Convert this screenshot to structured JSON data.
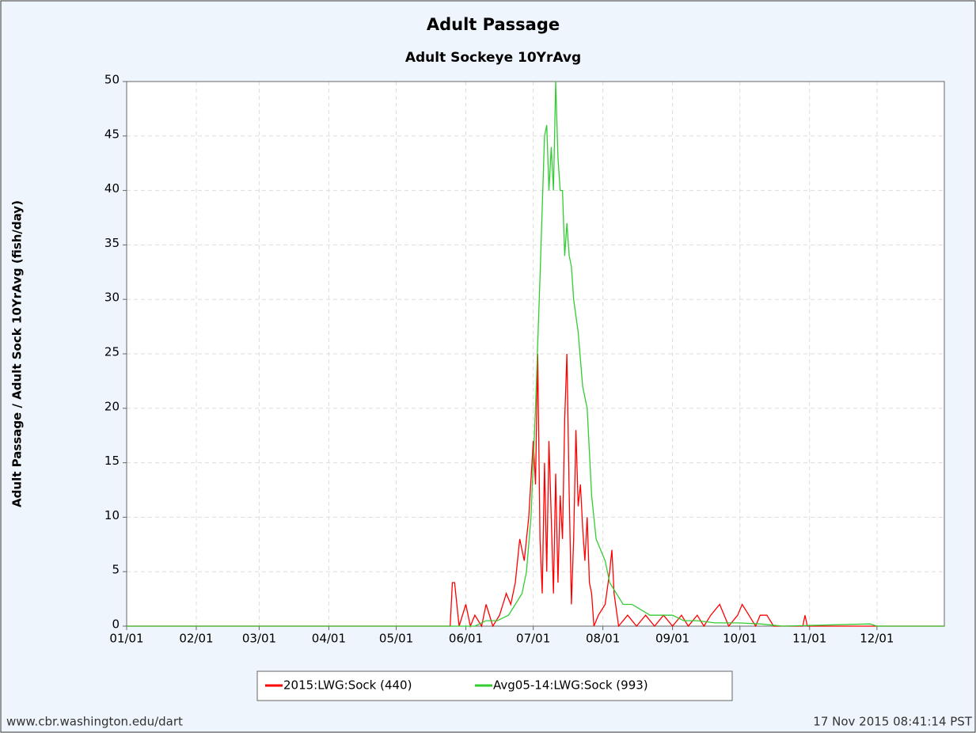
{
  "chart_data": {
    "type": "line",
    "title": "Adult Passage",
    "subtitle": "Adult Sockeye 10YrAvg",
    "y_label": "Adult Passage / Adult Sock 10YrAvg (fish/day)",
    "xlim": [
      "01/01",
      "12/31"
    ],
    "xticks": [
      "01/01",
      "02/01",
      "03/01",
      "04/01",
      "05/01",
      "06/01",
      "07/01",
      "08/01",
      "09/01",
      "10/01",
      "11/01",
      "12/01"
    ],
    "ylim": [
      0,
      50
    ],
    "yticks": [
      0,
      5,
      10,
      15,
      20,
      25,
      30,
      35,
      40,
      45,
      50
    ],
    "grid": true,
    "legend": "bottom",
    "series": [
      {
        "name": "2015:LWG:Sock (440)",
        "color": "#ff0000",
        "x": [
          "01/01",
          "05/20",
          "05/25",
          "05/26",
          "05/27",
          "05/29",
          "06/01",
          "06/03",
          "06/05",
          "06/08",
          "06/10",
          "06/13",
          "06/16",
          "06/19",
          "06/21",
          "06/23",
          "06/25",
          "06/27",
          "06/29",
          "07/01",
          "07/02",
          "07/03",
          "07/04",
          "07/05",
          "07/06",
          "07/07",
          "07/08",
          "07/09",
          "07/10",
          "07/11",
          "07/12",
          "07/13",
          "07/14",
          "07/15",
          "07/16",
          "07/17",
          "07/18",
          "07/19",
          "07/20",
          "07/21",
          "07/22",
          "07/23",
          "07/24",
          "07/25",
          "07/26",
          "07/27",
          "07/28",
          "07/30",
          "08/02",
          "08/04",
          "08/05",
          "08/06",
          "08/08",
          "08/12",
          "08/16",
          "08/20",
          "08/24",
          "08/28",
          "09/01",
          "09/05",
          "09/08",
          "09/12",
          "09/15",
          "09/18",
          "09/22",
          "09/26",
          "09/30",
          "10/02",
          "10/05",
          "10/08",
          "10/10",
          "10/13",
          "10/16",
          "10/29",
          "10/30",
          "10/31",
          "12/31"
        ],
        "values": [
          0,
          0,
          0,
          4,
          4,
          0,
          2,
          0,
          1,
          0,
          2,
          0,
          1,
          3,
          2,
          4,
          8,
          6,
          10,
          17,
          13,
          25,
          8,
          3,
          15,
          5,
          17,
          10,
          3,
          14,
          4,
          12,
          8,
          19,
          25,
          12,
          2,
          8,
          18,
          11,
          13,
          9,
          6,
          10,
          4,
          3,
          0,
          1,
          2,
          5,
          7,
          3,
          0,
          1,
          0,
          1,
          0,
          1,
          0,
          1,
          0,
          1,
          0,
          1,
          2,
          0,
          1,
          2,
          1,
          0,
          1,
          1,
          0,
          0,
          1,
          0,
          0
        ]
      },
      {
        "name": "Avg05-14:LWG:Sock (993)",
        "color": "#33cc33",
        "x": [
          "01/01",
          "06/05",
          "06/10",
          "06/15",
          "06/20",
          "06/23",
          "06/26",
          "06/28",
          "06/30",
          "07/02",
          "07/04",
          "07/06",
          "07/07",
          "07/08",
          "07/09",
          "07/10",
          "07/11",
          "07/12",
          "07/13",
          "07/14",
          "07/15",
          "07/16",
          "07/17",
          "07/18",
          "07/19",
          "07/21",
          "07/23",
          "07/25",
          "07/27",
          "07/29",
          "07/31",
          "08/02",
          "08/04",
          "08/07",
          "08/10",
          "08/14",
          "08/18",
          "08/22",
          "08/26",
          "09/01",
          "09/06",
          "09/12",
          "09/20",
          "09/30",
          "10/10",
          "10/20",
          "11/28",
          "12/01",
          "12/31"
        ],
        "values": [
          0,
          0,
          0.5,
          0.5,
          1,
          2,
          3,
          5,
          10,
          20,
          32,
          45,
          46,
          40,
          44,
          40,
          50,
          43,
          40,
          40,
          34,
          37,
          34,
          33,
          30,
          27,
          22,
          20,
          12,
          8,
          7,
          6,
          4,
          3,
          2,
          2,
          1.5,
          1,
          1,
          1,
          0.5,
          0.5,
          0.3,
          0.3,
          0.2,
          0,
          0.2,
          0,
          0
        ]
      }
    ],
    "footer_left": "www.cbr.washington.edu/dart",
    "footer_right": "17 Nov 2015 08:41:14 PST"
  }
}
